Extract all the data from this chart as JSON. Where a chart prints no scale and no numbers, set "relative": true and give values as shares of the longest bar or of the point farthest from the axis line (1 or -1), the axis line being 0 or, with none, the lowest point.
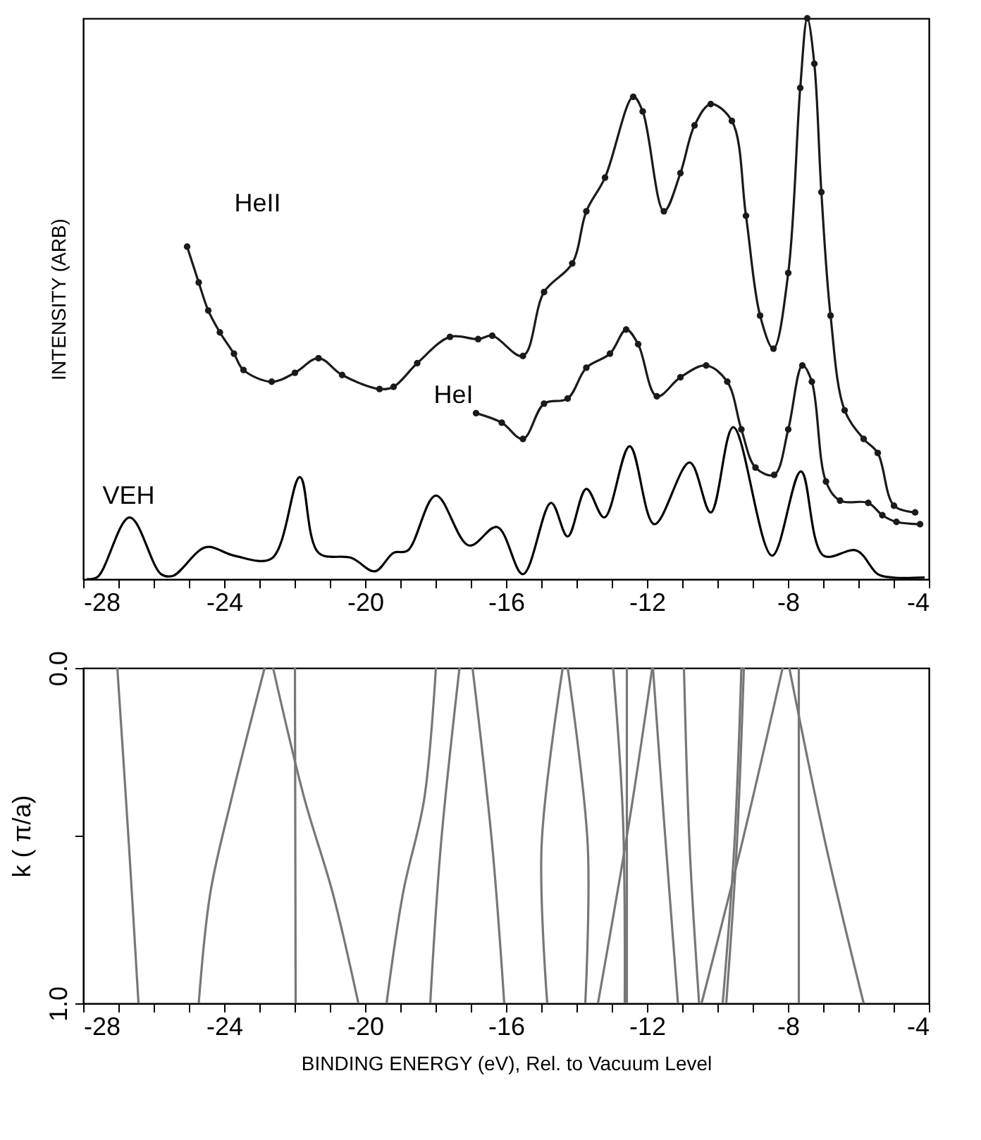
{
  "chart_data": [
    {
      "type": "line",
      "ylabel": "INTENSITY (ARB)",
      "relative": true,
      "xlim": [
        -28,
        -4
      ],
      "xticks": [
        -28,
        {
          "value": -27,
          "label": null
        },
        {
          "value": -26,
          "label": null
        },
        {
          "value": -25,
          "label": null
        },
        -24,
        {
          "value": -23,
          "label": null
        },
        {
          "value": -22,
          "label": null
        },
        {
          "value": -21,
          "label": null
        },
        -20,
        {
          "value": -19,
          "label": null
        },
        {
          "value": -18,
          "label": null
        },
        {
          "value": -17,
          "label": null
        },
        -16,
        {
          "value": -15,
          "label": null
        },
        {
          "value": -14,
          "label": null
        },
        {
          "value": -13,
          "label": null
        },
        -12,
        {
          "value": -11,
          "label": null
        },
        {
          "value": -10,
          "label": null
        },
        {
          "value": -9,
          "label": null
        },
        -8,
        {
          "value": -7,
          "label": null
        },
        {
          "value": -6,
          "label": null
        },
        {
          "value": -5,
          "label": null
        },
        -4
      ],
      "series": [
        {
          "name": "HeII",
          "color": "#1a1a1a",
          "marker": "circle",
          "x": [
            -25.05,
            -24.72,
            -24.45,
            -24.12,
            -23.72,
            -23.45,
            -22.65,
            -21.99,
            -21.32,
            -20.65,
            -19.59,
            -19.19,
            -18.52,
            -17.59,
            -16.79,
            -16.39,
            -15.52,
            -14.92,
            -14.12,
            -13.72,
            -13.19,
            -12.39,
            -12.12,
            -11.52,
            -11.05,
            -10.65,
            -10.19,
            -9.59,
            -9.19,
            -8.79,
            -8.41,
            -7.99,
            -7.65,
            -7.45,
            -7.25,
            -7.05,
            -6.79,
            -6.39,
            -5.85,
            -5.45,
            -4.99,
            -4.39
          ],
          "values": [
            0.593,
            0.529,
            0.479,
            0.44,
            0.402,
            0.373,
            0.352,
            0.368,
            0.394,
            0.364,
            0.339,
            0.343,
            0.385,
            0.432,
            0.428,
            0.434,
            0.398,
            0.512,
            0.563,
            0.656,
            0.716,
            0.86,
            0.834,
            0.656,
            0.724,
            0.809,
            0.847,
            0.817,
            0.648,
            0.47,
            0.411,
            0.546,
            0.876,
            1,
            0.919,
            0.69,
            0.47,
            0.301,
            0.25,
            0.225,
            0.131,
            0.119
          ]
        },
        {
          "name": "HeI",
          "color": "#1a1a1a",
          "marker": "circle",
          "x": [
            -16.85,
            -16.12,
            -15.52,
            -14.92,
            -14.25,
            -13.72,
            -13.05,
            -12.59,
            -12.25,
            -11.72,
            -11.05,
            -10.32,
            -9.72,
            -9.32,
            -8.92,
            -8.39,
            -7.99,
            -7.59,
            -7.32,
            -6.92,
            -6.52,
            -5.72,
            -5.32,
            -4.92,
            -4.25
          ],
          "values": [
            0.296,
            0.279,
            0.25,
            0.313,
            0.322,
            0.377,
            0.402,
            0.445,
            0.419,
            0.326,
            0.36,
            0.381,
            0.352,
            0.267,
            0.199,
            0.186,
            0.267,
            0.381,
            0.352,
            0.174,
            0.14,
            0.136,
            0.114,
            0.102,
            0.098
          ]
        },
        {
          "name": "VEH",
          "color": "#000000",
          "marker": "none",
          "x": [
            -27.9,
            -27.59,
            -26.68,
            -25.79,
            -25.45,
            -24.52,
            -23.72,
            -22.65,
            -21.85,
            -21.32,
            -20.39,
            -19.72,
            -19.19,
            -18.79,
            -17.99,
            -17.05,
            -16.25,
            -15.52,
            -14.72,
            -14.25,
            -13.72,
            -13.21,
            -12.49,
            -11.79,
            -10.79,
            -10.19,
            -9.55,
            -8.45,
            -7.63,
            -6.99,
            -6.05,
            -5.45,
            -5.05,
            -4.12
          ],
          "values": [
            0,
            0.004,
            0.11,
            0.009,
            0.006,
            0.057,
            0.042,
            0.037,
            0.182,
            0.047,
            0.038,
            0.014,
            0.047,
            0.051,
            0.149,
            0.06,
            0.093,
            0.009,
            0.136,
            0.076,
            0.161,
            0.11,
            0.237,
            0.098,
            0.208,
            0.119,
            0.271,
            0.042,
            0.192,
            0.042,
            0.051,
            0.009,
            0.003,
            0.003
          ]
        }
      ]
    },
    {
      "type": "line",
      "xlabel": "BINDING ENERGY (eV), Rel. to Vacuum Level",
      "ylabel": "k ( π/a)",
      "xlim": [
        -28,
        -4
      ],
      "ylim": [
        1,
        0
      ],
      "xticks": [
        -28,
        {
          "value": -27,
          "label": null
        },
        {
          "value": -26,
          "label": null
        },
        {
          "value": -25,
          "label": null
        },
        -24,
        {
          "value": -23,
          "label": null
        },
        {
          "value": -22,
          "label": null
        },
        {
          "value": -21,
          "label": null
        },
        -20,
        {
          "value": -19,
          "label": null
        },
        {
          "value": -18,
          "label": null
        },
        {
          "value": -17,
          "label": null
        },
        -16,
        {
          "value": -15,
          "label": null
        },
        {
          "value": -14,
          "label": null
        },
        {
          "value": -13,
          "label": null
        },
        -12,
        {
          "value": -11,
          "label": null
        },
        {
          "value": -10,
          "label": null
        },
        {
          "value": -9,
          "label": null
        },
        -8,
        {
          "value": -7,
          "label": null
        },
        {
          "value": -6,
          "label": null
        },
        {
          "value": -5,
          "label": null
        },
        -4
      ],
      "yticks": [
        {
          "value": 0,
          "label": "0.0"
        },
        {
          "value": 0.5,
          "label": null
        },
        {
          "value": 1,
          "label": "1.0"
        }
      ],
      "series": [
        {
          "color": "#777777",
          "x": [
            -27.03,
            -26.7,
            -26.43
          ],
          "values": [
            0,
            0.53,
            1
          ]
        },
        {
          "color": "#777777",
          "x": [
            -22.85,
            -23.79,
            -24.39,
            -24.72
          ],
          "values": [
            0,
            0.39,
            0.67,
            1
          ]
        },
        {
          "color": "#777777",
          "x": [
            -22.61,
            -21.72,
            -20.92,
            -20.19
          ],
          "values": [
            0,
            0.39,
            0.67,
            1
          ]
        },
        {
          "color": "#777777",
          "x": [
            -21.99,
            -21.97
          ],
          "values": [
            0,
            1
          ]
        },
        {
          "color": "#777777",
          "x": [
            -17.99,
            -18.32,
            -18.92,
            -19.39
          ],
          "values": [
            0,
            0.39,
            0.67,
            1
          ]
        },
        {
          "color": "#777777",
          "x": [
            -17.32,
            -17.85,
            -18.15
          ],
          "values": [
            0,
            0.53,
            1
          ]
        },
        {
          "color": "#777777",
          "x": [
            -16.95,
            -16.39,
            -16.05
          ],
          "values": [
            0,
            0.53,
            1
          ]
        },
        {
          "color": "#777777",
          "x": [
            -14.39,
            -14.99,
            -14.83
          ],
          "values": [
            0,
            0.53,
            1
          ]
        },
        {
          "color": "#777777",
          "x": [
            -14.25,
            -13.68,
            -13.75
          ],
          "values": [
            0,
            0.53,
            1
          ]
        },
        {
          "color": "#777777",
          "x": [
            -12.96,
            -12.68,
            -12.63
          ],
          "values": [
            0,
            0.45,
            1
          ]
        },
        {
          "color": "#777777",
          "x": [
            -12.57,
            -12.57
          ],
          "values": [
            0,
            1
          ]
        },
        {
          "color": "#777777",
          "x": [
            -11.85,
            -12.49,
            -13.39
          ],
          "values": [
            0,
            0.45,
            1
          ]
        },
        {
          "color": "#777777",
          "x": [
            -11.83,
            -11.52,
            -11.12
          ],
          "values": [
            0,
            0.45,
            1
          ]
        },
        {
          "color": "#777777",
          "x": [
            -10.95,
            -10.79,
            -10.52
          ],
          "values": [
            0,
            0.53,
            1
          ]
        },
        {
          "color": "#777777",
          "x": [
            -9.32,
            -9.52,
            -9.85
          ],
          "values": [
            0,
            0.53,
            1
          ]
        },
        {
          "color": "#777777",
          "x": [
            -9.25,
            -9.45,
            -9.75
          ],
          "values": [
            0,
            0.53,
            1
          ]
        },
        {
          "color": "#777777",
          "x": [
            -8.15,
            -9.32,
            -10.45
          ],
          "values": [
            0,
            0.53,
            1
          ]
        },
        {
          "color": "#777777",
          "x": [
            -7.96,
            -6.92,
            -5.85
          ],
          "values": [
            0,
            0.53,
            1
          ]
        },
        {
          "color": "#777777",
          "x": [
            -7.69,
            -7.69
          ],
          "values": [
            0,
            1
          ]
        }
      ]
    }
  ]
}
